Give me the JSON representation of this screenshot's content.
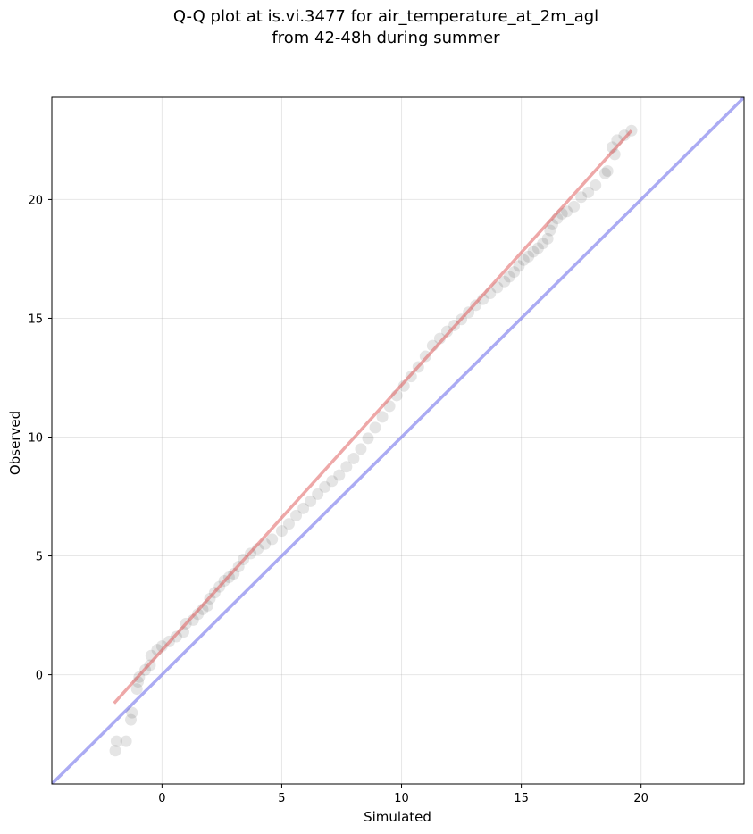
{
  "chart_data": {
    "type": "scatter",
    "title": "Q-Q plot at is.vi.3477 for air_temperature_at_2m_agl",
    "subtitle": "from 42-48h during summer",
    "xlabel": "Simulated",
    "ylabel": "Observed",
    "xlim": [
      -4.6,
      24.3
    ],
    "ylim": [
      -4.6,
      24.3
    ],
    "xticks": [
      0,
      5,
      10,
      15,
      20
    ],
    "yticks": [
      0,
      5,
      10,
      15,
      20
    ],
    "grid": true,
    "points_color": "#000000",
    "fit_color": "#e06060",
    "identity_color": "#8888ee",
    "quantiles": [
      [
        -1.95,
        -3.2
      ],
      [
        -1.9,
        -2.8
      ],
      [
        -1.5,
        -2.8
      ],
      [
        -1.3,
        -1.9
      ],
      [
        -1.25,
        -1.6
      ],
      [
        -1.05,
        -0.6
      ],
      [
        -1.0,
        -0.3
      ],
      [
        -0.95,
        -0.1
      ],
      [
        -0.7,
        0.2
      ],
      [
        -0.5,
        0.4
      ],
      [
        -0.45,
        0.8
      ],
      [
        -0.2,
        1.05
      ],
      [
        0.0,
        1.2
      ],
      [
        0.3,
        1.4
      ],
      [
        0.6,
        1.6
      ],
      [
        0.9,
        1.8
      ],
      [
        1.0,
        2.15
      ],
      [
        1.3,
        2.3
      ],
      [
        1.5,
        2.55
      ],
      [
        1.7,
        2.75
      ],
      [
        1.9,
        2.9
      ],
      [
        2.0,
        3.2
      ],
      [
        2.2,
        3.45
      ],
      [
        2.4,
        3.7
      ],
      [
        2.6,
        3.95
      ],
      [
        2.8,
        4.1
      ],
      [
        3.0,
        4.25
      ],
      [
        3.2,
        4.55
      ],
      [
        3.4,
        4.85
      ],
      [
        3.7,
        5.1
      ],
      [
        4.0,
        5.3
      ],
      [
        4.3,
        5.5
      ],
      [
        4.6,
        5.7
      ],
      [
        5.0,
        6.05
      ],
      [
        5.3,
        6.35
      ],
      [
        5.6,
        6.7
      ],
      [
        5.9,
        7.0
      ],
      [
        6.2,
        7.3
      ],
      [
        6.5,
        7.6
      ],
      [
        6.8,
        7.9
      ],
      [
        7.1,
        8.15
      ],
      [
        7.4,
        8.4
      ],
      [
        7.7,
        8.75
      ],
      [
        8.0,
        9.1
      ],
      [
        8.3,
        9.5
      ],
      [
        8.6,
        9.95
      ],
      [
        8.9,
        10.4
      ],
      [
        9.2,
        10.85
      ],
      [
        9.5,
        11.3
      ],
      [
        9.8,
        11.75
      ],
      [
        10.1,
        12.15
      ],
      [
        10.4,
        12.55
      ],
      [
        10.7,
        12.95
      ],
      [
        11.0,
        13.4
      ],
      [
        11.3,
        13.85
      ],
      [
        11.6,
        14.15
      ],
      [
        11.9,
        14.45
      ],
      [
        12.2,
        14.7
      ],
      [
        12.5,
        14.95
      ],
      [
        12.8,
        15.25
      ],
      [
        13.1,
        15.55
      ],
      [
        13.4,
        15.8
      ],
      [
        13.7,
        16.05
      ],
      [
        14.0,
        16.3
      ],
      [
        14.3,
        16.55
      ],
      [
        14.5,
        16.75
      ],
      [
        14.7,
        16.95
      ],
      [
        14.9,
        17.2
      ],
      [
        15.1,
        17.45
      ],
      [
        15.3,
        17.6
      ],
      [
        15.5,
        17.8
      ],
      [
        15.7,
        17.95
      ],
      [
        15.9,
        18.15
      ],
      [
        16.1,
        18.35
      ],
      [
        16.2,
        18.7
      ],
      [
        16.3,
        18.95
      ],
      [
        16.5,
        19.2
      ],
      [
        16.7,
        19.4
      ],
      [
        16.9,
        19.5
      ],
      [
        17.2,
        19.7
      ],
      [
        17.5,
        20.1
      ],
      [
        17.8,
        20.3
      ],
      [
        18.1,
        20.6
      ],
      [
        18.5,
        21.1
      ],
      [
        18.6,
        21.2
      ],
      [
        18.9,
        21.9
      ],
      [
        18.8,
        22.2
      ],
      [
        19.0,
        22.5
      ],
      [
        19.3,
        22.7
      ],
      [
        19.6,
        22.9
      ]
    ],
    "fit_line": [
      [
        -2.0,
        -1.2
      ],
      [
        19.6,
        22.9
      ]
    ]
  }
}
